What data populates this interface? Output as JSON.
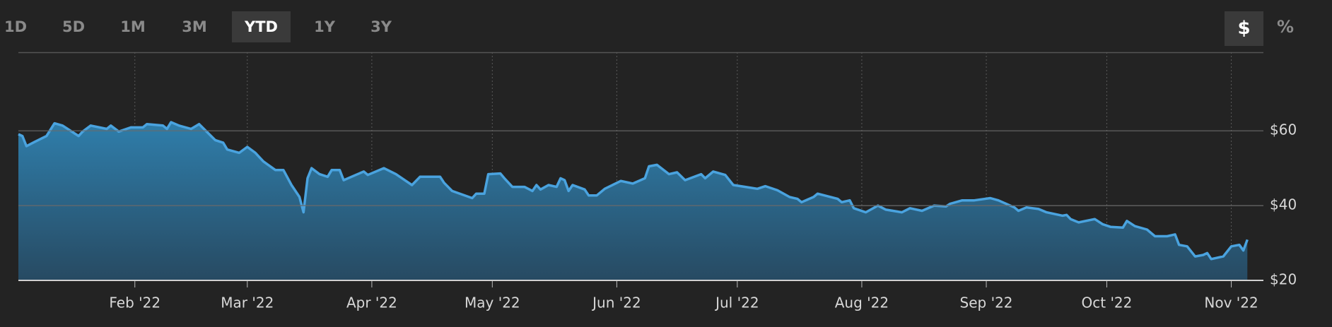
{
  "controls": {
    "ranges": [
      "1D",
      "5D",
      "1M",
      "3M",
      "YTD",
      "1Y",
      "3Y"
    ],
    "units": [
      "$",
      "%"
    ]
  },
  "chart_data": {
    "type": "area",
    "color": "#4aa3df",
    "grid": true,
    "x": [
      0,
      1,
      2,
      4,
      7,
      9,
      11,
      15,
      16,
      18,
      22,
      23,
      25,
      28,
      31,
      32,
      36,
      37,
      38,
      40,
      43,
      45,
      49,
      51,
      52,
      55,
      57,
      59,
      61,
      64,
      66,
      68,
      70,
      71,
      72,
      73,
      75,
      77,
      78,
      80,
      81,
      84,
      86,
      87,
      91,
      94,
      98,
      100,
      105,
      106,
      108,
      113,
      114,
      116,
      117,
      120,
      121,
      123,
      126,
      128,
      129,
      130,
      132,
      134,
      135,
      136,
      137,
      138,
      141,
      142,
      144,
      146,
      150,
      153,
      156,
      157,
      159,
      162,
      164,
      166,
      170,
      171,
      173,
      176,
      178,
      181,
      184,
      186,
      189,
      192,
      194,
      195,
      198,
      199,
      204,
      205,
      207,
      208,
      211,
      214,
      216,
      220,
      222,
      225,
      228,
      231,
      232,
      235,
      238,
      242,
      244,
      248,
      249,
      251,
      254,
      256,
      260,
      261,
      262,
      264,
      268,
      270,
      272,
      275,
      276,
      278,
      281,
      283,
      286,
      288,
      289,
      291,
      293,
      295,
      296,
      297,
      300,
      302,
      304,
      305,
      306
    ],
    "values": [
      59.1,
      58.6,
      55.9,
      57.0,
      58.6,
      62.0,
      61.4,
      58.6,
      59.8,
      61.4,
      60.5,
      61.4,
      59.8,
      60.9,
      60.9,
      61.8,
      61.4,
      60.5,
      62.3,
      61.4,
      60.5,
      61.8,
      57.5,
      56.8,
      55.0,
      54.1,
      55.7,
      54.1,
      51.8,
      49.5,
      49.5,
      45.5,
      42.3,
      38.2,
      47.3,
      50.0,
      48.4,
      47.7,
      49.5,
      49.5,
      46.8,
      48.2,
      49.1,
      48.2,
      50.0,
      48.4,
      45.5,
      47.7,
      47.7,
      46.1,
      43.9,
      42.0,
      43.2,
      43.2,
      48.4,
      48.6,
      47.3,
      45.0,
      45.0,
      43.9,
      45.5,
      44.3,
      45.5,
      45.0,
      47.3,
      46.8,
      43.9,
      45.5,
      44.3,
      42.7,
      42.7,
      44.5,
      46.6,
      45.9,
      47.3,
      50.5,
      50.9,
      48.4,
      48.9,
      46.8,
      48.4,
      47.3,
      49.1,
      48.2,
      45.5,
      45.0,
      44.5,
      45.2,
      44.1,
      42.3,
      41.8,
      40.9,
      42.3,
      43.2,
      41.8,
      40.9,
      41.4,
      39.3,
      38.2,
      40.0,
      38.9,
      38.2,
      39.3,
      38.6,
      40.0,
      39.8,
      40.5,
      41.4,
      41.4,
      42.0,
      41.4,
      39.5,
      38.6,
      39.5,
      39.1,
      38.2,
      37.3,
      37.5,
      36.4,
      35.5,
      36.4,
      35.0,
      34.3,
      34.1,
      35.9,
      34.5,
      33.6,
      31.8,
      31.8,
      32.3,
      29.5,
      29.1,
      26.4,
      26.8,
      27.3,
      25.7,
      26.4,
      29.1,
      29.5,
      28.0,
      30.9
    ],
    "xlim": [
      0,
      310
    ],
    "xticks": [
      {
        "value": 29,
        "label": "Feb '22"
      },
      {
        "value": 57,
        "label": "Mar '22"
      },
      {
        "value": 88,
        "label": "Apr '22"
      },
      {
        "value": 118,
        "label": "May '22"
      },
      {
        "value": 149,
        "label": "Jun '22"
      },
      {
        "value": 179,
        "label": "Jul '22"
      },
      {
        "value": 210,
        "label": "Aug '22"
      },
      {
        "value": 241,
        "label": "Sep '22"
      },
      {
        "value": 271,
        "label": "Oct '22"
      },
      {
        "value": 302,
        "label": "Nov '22"
      }
    ],
    "ylim": [
      20,
      81
    ],
    "yticks": [
      {
        "value": 20,
        "label": "$20"
      },
      {
        "value": 40,
        "label": "$40"
      },
      {
        "value": 60,
        "label": "$60"
      }
    ]
  }
}
